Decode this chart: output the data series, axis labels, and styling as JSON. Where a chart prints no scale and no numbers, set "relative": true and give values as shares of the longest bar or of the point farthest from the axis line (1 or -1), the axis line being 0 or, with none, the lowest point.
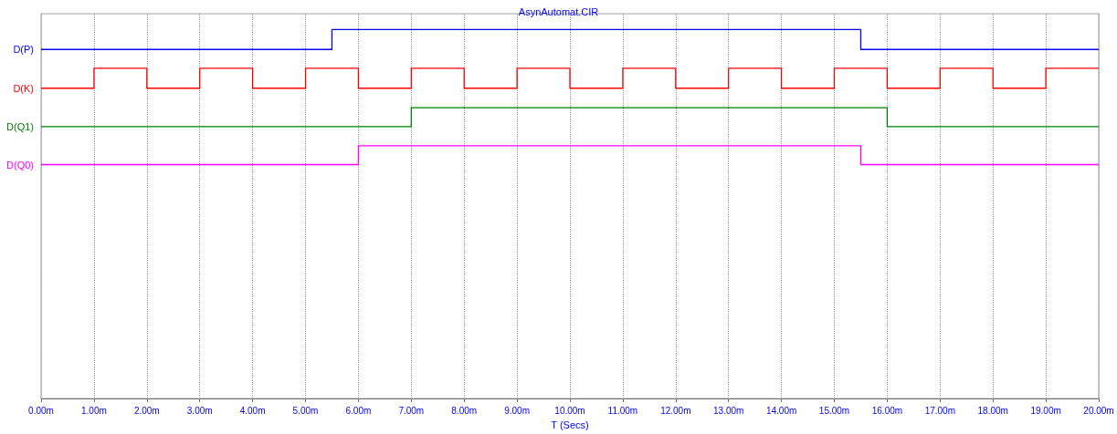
{
  "chart_data": {
    "type": "step",
    "title": "AsynAutomat.CIR",
    "xlabel": "T (Secs)",
    "relative": true,
    "xlim": [
      0,
      20
    ],
    "xticks": [
      {
        "value": 0,
        "label": "0.00m"
      },
      {
        "value": 1,
        "label": "1.00m"
      },
      {
        "value": 2,
        "label": "2.00m"
      },
      {
        "value": 3,
        "label": "3.00m"
      },
      {
        "value": 4,
        "label": "4.00m"
      },
      {
        "value": 5,
        "label": "5.00m"
      },
      {
        "value": 6,
        "label": "6.00m"
      },
      {
        "value": 7,
        "label": "7.00m"
      },
      {
        "value": 8,
        "label": "8.00m"
      },
      {
        "value": 9,
        "label": "9.00m"
      },
      {
        "value": 10,
        "label": "10.00m"
      },
      {
        "value": 11,
        "label": "11.00m"
      },
      {
        "value": 12,
        "label": "12.00m"
      },
      {
        "value": 13,
        "label": "13.00m"
      },
      {
        "value": 14,
        "label": "14.00m"
      },
      {
        "value": 15,
        "label": "15.00m"
      },
      {
        "value": 16,
        "label": "16.00m"
      },
      {
        "value": 17,
        "label": "17.00m"
      },
      {
        "value": 18,
        "label": "18.00m"
      },
      {
        "value": 19,
        "label": "19.00m"
      },
      {
        "value": 20,
        "label": "20.00m"
      }
    ],
    "grid": "x",
    "legend": false,
    "line_style": "solid",
    "marker": "none",
    "series": [
      {
        "name": "D(P)",
        "color": "#0000ff",
        "x": [
          0,
          5.5,
          15.5,
          20
        ],
        "values": [
          0.946,
          1,
          0.946,
          0.946
        ]
      },
      {
        "name": "D(K)",
        "color": "#ff0000",
        "x": [
          0,
          1,
          2,
          3,
          4,
          5,
          6,
          7,
          8,
          9,
          10,
          11,
          12,
          13,
          14,
          15,
          16,
          17,
          18,
          19,
          20
        ],
        "values": [
          0.841,
          0.895,
          0.841,
          0.895,
          0.841,
          0.895,
          0.841,
          0.895,
          0.841,
          0.895,
          0.841,
          0.895,
          0.841,
          0.895,
          0.841,
          0.895,
          0.841,
          0.895,
          0.841,
          0.895,
          0.895
        ]
      },
      {
        "name": "D(Q1)",
        "color": "#008000",
        "x": [
          0,
          7,
          16,
          20
        ],
        "values": [
          0.737,
          0.788,
          0.737,
          0.737
        ]
      },
      {
        "name": "D(Q0)",
        "color": "#ff00ff",
        "x": [
          0,
          6,
          15.5,
          20
        ],
        "values": [
          0.634,
          0.685,
          0.634,
          0.634
        ]
      }
    ]
  }
}
